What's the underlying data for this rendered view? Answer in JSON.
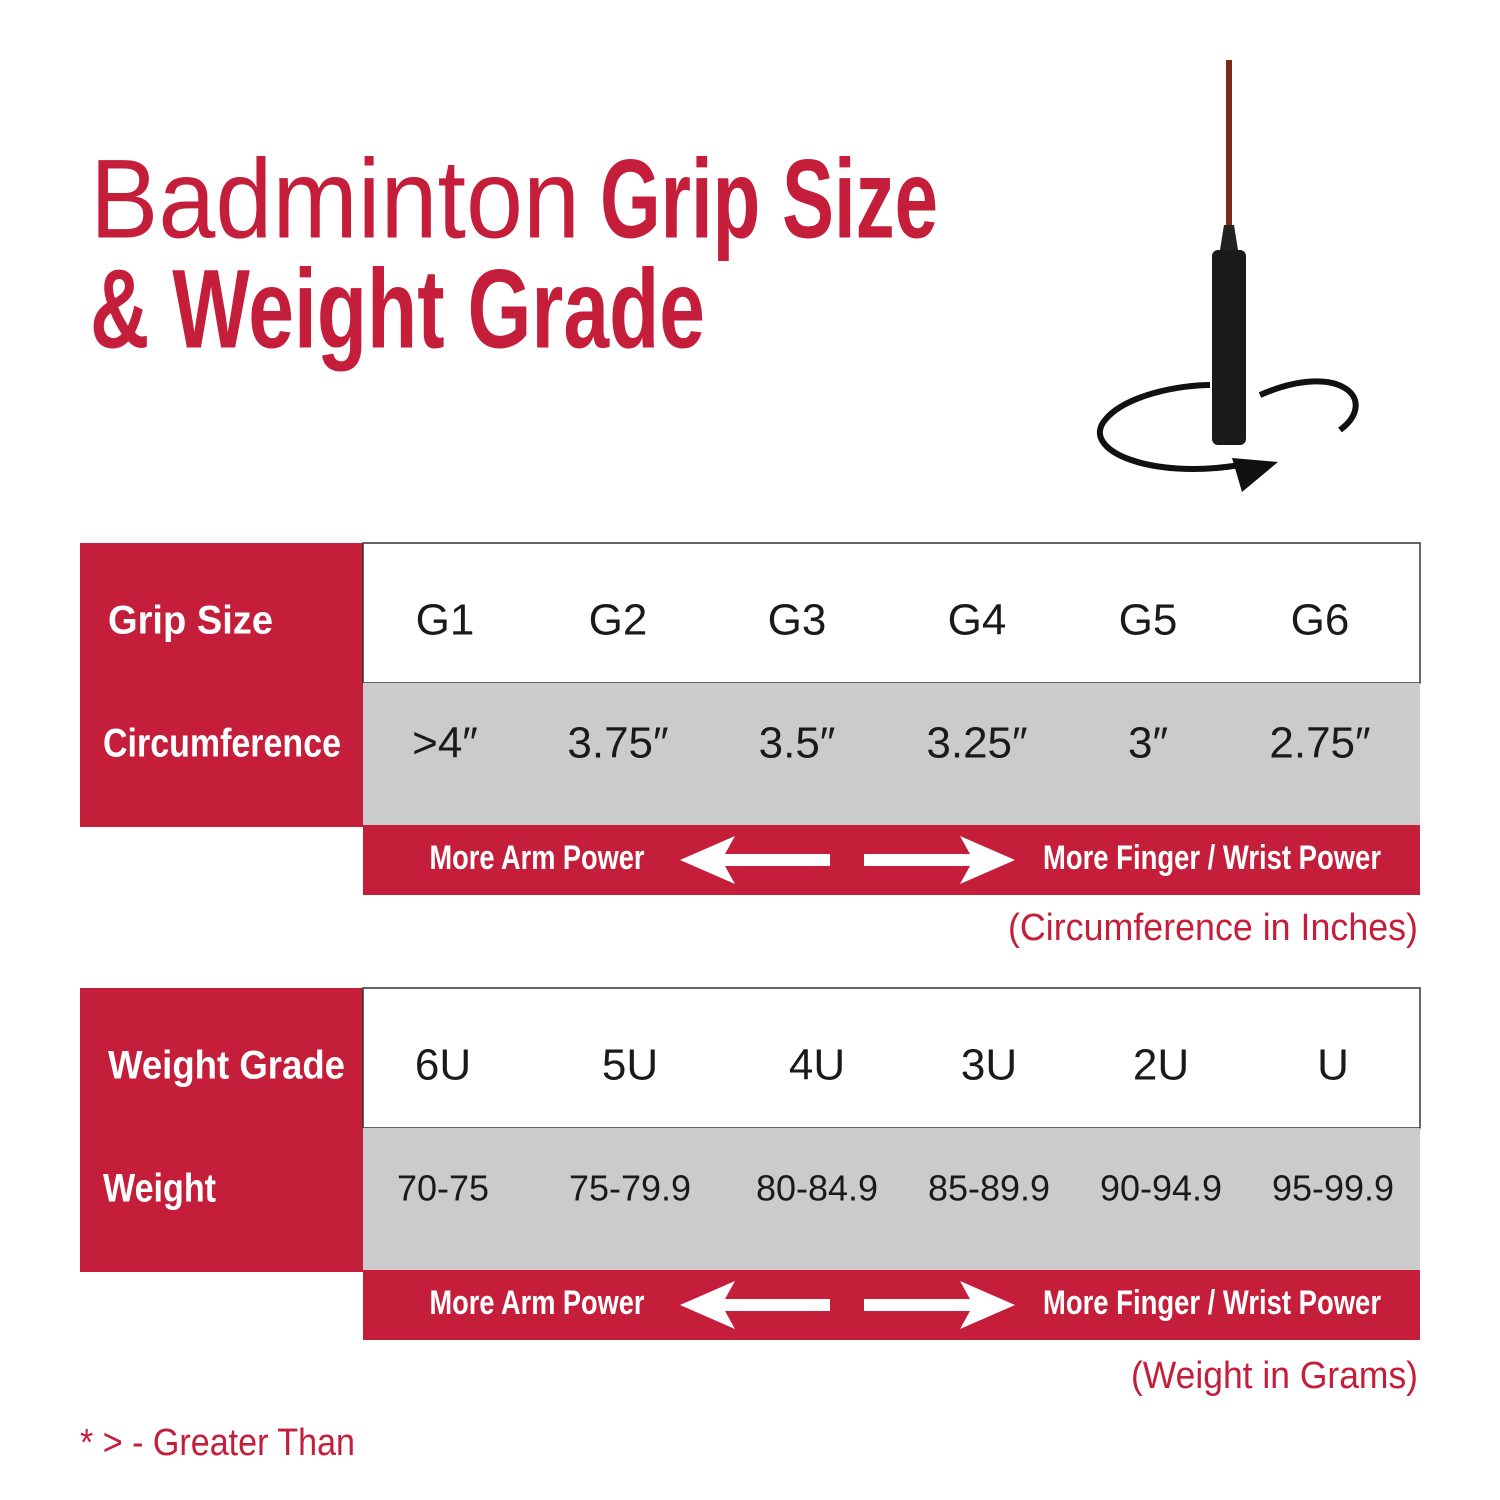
{
  "title": {
    "line1_light": "Badminton",
    "line1_bold": "Grip Size",
    "line2": "& Weight Grade"
  },
  "grip_table": {
    "header_label": "Grip Size",
    "columns": [
      "G1",
      "G2",
      "G3",
      "G4",
      "G5",
      "G6"
    ],
    "row_label": "Circumference",
    "values": [
      ">4″",
      "3.75″",
      "3.5″",
      "3.25″",
      "3″",
      "2.75″"
    ],
    "power_left": "More Arm Power",
    "power_right": "More Finger / Wrist Power",
    "unit_note": "(Circumference in Inches)"
  },
  "weight_table": {
    "header_label": "Weight Grade",
    "columns": [
      "6U",
      "5U",
      "4U",
      "3U",
      "2U",
      "U"
    ],
    "row_label": "Weight",
    "values": [
      "70-75",
      "75-79.9",
      "80-84.9",
      "85-89.9",
      "90-94.9",
      "95-99.9"
    ],
    "power_left": "More Arm Power",
    "power_right": "More Finger / Wrist Power",
    "unit_note": "(Weight in Grams)"
  },
  "footnote": "* > - Greater Than"
}
